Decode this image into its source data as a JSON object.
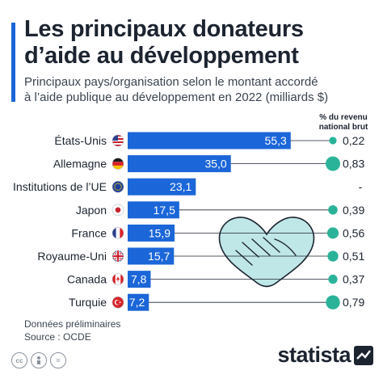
{
  "header": {
    "title_line1": "Les principaux donateurs",
    "title_line2": "d’aide au développement",
    "subtitle_line1": "Principaux pays/organisation selon le montant accordé",
    "subtitle_line2": "à l’aide publique au développement en 2022 (milliards $)"
  },
  "pct_header": {
    "line1": "% du revenu",
    "line2": "national brut"
  },
  "notes": {
    "line1": "Données préliminaires",
    "line2": "Source : OCDE"
  },
  "brand": {
    "name": "statista"
  },
  "footer_icons": [
    "cc-icon",
    "person-icon",
    "equals-icon"
  ],
  "colors": {
    "accent": "#1b66d8",
    "bar": "#1b66d8",
    "dot": "#2bb39a",
    "line": "#1c2430",
    "illustration": "#bfe7e7"
  },
  "chart_data": {
    "type": "bar",
    "orientation": "horizontal",
    "categories": [
      "États-Unis",
      "Allemagne",
      "Institutions de l’UE",
      "Japon",
      "France",
      "Royaume-Uni",
      "Canada",
      "Turquie"
    ],
    "flags": [
      "us-flag-icon",
      "germany-flag-icon",
      "eu-flag-icon",
      "japan-flag-icon",
      "france-flag-icon",
      "uk-flag-icon",
      "canada-flag-icon",
      "turkey-flag-icon"
    ],
    "series": [
      {
        "name": "",
        "values": [
          55.3,
          35.0,
          23.1,
          17.5,
          15.9,
          15.7,
          7.8,
          7.2
        ]
      }
    ],
    "value_labels": [
      "55,3",
      "35,0",
      "23,1",
      "17,5",
      "15,9",
      "15,7",
      "7,8",
      "7,2"
    ],
    "pct_gni": [
      0.22,
      0.83,
      null,
      0.39,
      0.56,
      0.51,
      0.37,
      0.79
    ],
    "pct_gni_labels": [
      "0,22",
      "0,83",
      "-",
      "0,39",
      "0,56",
      "0,51",
      "0,37",
      "0,79"
    ],
    "xlim": [
      0,
      57
    ],
    "grid": false,
    "legend": "none"
  }
}
